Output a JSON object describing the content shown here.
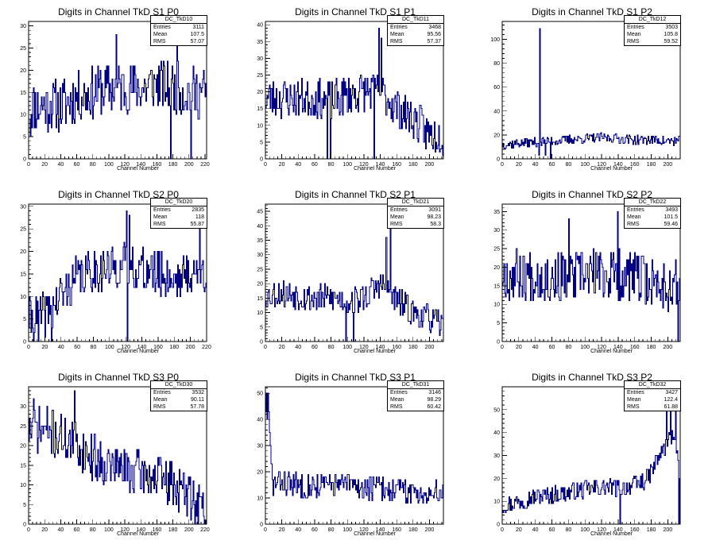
{
  "canvas": {
    "bg": "#ffffff",
    "line_color": "#000080"
  },
  "chart_data": [
    {
      "type": "histogram",
      "title": "Digits in Channel TkD S1 P0",
      "xlabel": "Channel Number",
      "ylim": [
        0,
        31
      ],
      "xlim": [
        0,
        222
      ],
      "nbins": 222,
      "yticks": [
        0,
        5,
        10,
        15,
        20,
        25,
        30
      ],
      "stats": {
        "name": "DC_TkD10",
        "entries": "3111",
        "mean": "107.5",
        "rms": "57.07"
      },
      "profile": [
        [
          0,
          12
        ],
        [
          20,
          12
        ],
        [
          40,
          12
        ],
        [
          60,
          14
        ],
        [
          80,
          15
        ],
        [
          100,
          16
        ],
        [
          120,
          16
        ],
        [
          140,
          16
        ],
        [
          160,
          17
        ],
        [
          180,
          16
        ],
        [
          200,
          15
        ],
        [
          221,
          15
        ]
      ],
      "spikes": [
        [
          109,
          28
        ],
        [
          185,
          28
        ],
        [
          177,
          0
        ],
        [
          202,
          0
        ],
        [
          2,
          5
        ]
      ],
      "amp": 6,
      "seed": 11
    },
    {
      "type": "histogram",
      "title": "Digits in Channel TkD S1 P1",
      "xlabel": "Channel Number",
      "ylim": [
        0,
        41
      ],
      "xlim": [
        0,
        217
      ],
      "nbins": 217,
      "yticks": [
        0,
        5,
        10,
        15,
        20,
        25,
        30,
        35,
        40
      ],
      "stats": {
        "name": "DC_TkD11",
        "entries": "3468",
        "mean": "95.56",
        "rms": "57.37"
      },
      "profile": [
        [
          0,
          18
        ],
        [
          20,
          18
        ],
        [
          40,
          18
        ],
        [
          60,
          18
        ],
        [
          80,
          17
        ],
        [
          100,
          19
        ],
        [
          120,
          20
        ],
        [
          140,
          20
        ],
        [
          160,
          15
        ],
        [
          180,
          12
        ],
        [
          200,
          7
        ],
        [
          216,
          8
        ]
      ],
      "spikes": [
        [
          138,
          39
        ],
        [
          141,
          36
        ],
        [
          75,
          0
        ],
        [
          79,
          0
        ],
        [
          132,
          0
        ],
        [
          216,
          1
        ]
      ],
      "amp": 6,
      "seed": 23
    },
    {
      "type": "histogram",
      "title": "Digits in Channel TkD S1 P2",
      "xlabel": "Channel Number",
      "ylim": [
        0,
        115
      ],
      "xlim": [
        0,
        215
      ],
      "nbins": 215,
      "yticks": [
        0,
        20,
        40,
        60,
        80,
        100
      ],
      "stats": {
        "name": "DC_TkD12",
        "entries": "3503",
        "mean": "105.8",
        "rms": "59.52"
      },
      "profile": [
        [
          0,
          12
        ],
        [
          20,
          13
        ],
        [
          40,
          14
        ],
        [
          60,
          15
        ],
        [
          80,
          16
        ],
        [
          100,
          17
        ],
        [
          120,
          18
        ],
        [
          140,
          17
        ],
        [
          160,
          16
        ],
        [
          180,
          16
        ],
        [
          200,
          15
        ],
        [
          214,
          15
        ]
      ],
      "spikes": [
        [
          45,
          109
        ],
        [
          44,
          3
        ],
        [
          52,
          3
        ],
        [
          58,
          0
        ]
      ],
      "amp": 4,
      "seed": 37
    },
    {
      "type": "histogram",
      "title": "Digits in Channel TkD S2 P0",
      "xlabel": "Channel Number",
      "ylim": [
        0,
        30.5
      ],
      "xlim": [
        0,
        220
      ],
      "nbins": 220,
      "yticks": [
        0,
        5,
        10,
        15,
        20,
        25,
        30
      ],
      "stats": {
        "name": "DC_TkD20",
        "entries": "2835",
        "mean": "118",
        "rms": "55.87"
      },
      "profile": [
        [
          0,
          5
        ],
        [
          20,
          6
        ],
        [
          40,
          10
        ],
        [
          60,
          14
        ],
        [
          80,
          16
        ],
        [
          100,
          16
        ],
        [
          120,
          17
        ],
        [
          140,
          16
        ],
        [
          160,
          15
        ],
        [
          180,
          14
        ],
        [
          200,
          15
        ],
        [
          219,
          15
        ]
      ],
      "spikes": [
        [
          121,
          29
        ],
        [
          124,
          28
        ],
        [
          211,
          26
        ],
        [
          122,
          0
        ],
        [
          12,
          0
        ],
        [
          28,
          0
        ]
      ],
      "amp": 5,
      "seed": 41
    },
    {
      "type": "histogram",
      "title": "Digits in Channel TkD S2 P1",
      "xlabel": "Channel Number",
      "ylim": [
        0,
        47.5
      ],
      "xlim": [
        0,
        217
      ],
      "nbins": 217,
      "yticks": [
        0,
        5,
        10,
        15,
        20,
        25,
        30,
        35,
        40,
        45
      ],
      "stats": {
        "name": "DC_TkD21",
        "entries": "3091",
        "mean": "98.23",
        "rms": "58.3"
      },
      "profile": [
        [
          0,
          16
        ],
        [
          20,
          17
        ],
        [
          40,
          16
        ],
        [
          60,
          15
        ],
        [
          80,
          15
        ],
        [
          100,
          14
        ],
        [
          120,
          15
        ],
        [
          140,
          20
        ],
        [
          160,
          14
        ],
        [
          180,
          10
        ],
        [
          200,
          8
        ],
        [
          216,
          5
        ]
      ],
      "spikes": [
        [
          152,
          45
        ],
        [
          147,
          36
        ],
        [
          98,
          0
        ],
        [
          107,
          0
        ]
      ],
      "amp": 5,
      "seed": 53
    },
    {
      "type": "histogram",
      "title": "Digits in Channel TkD S2 P2",
      "xlabel": "Channel Number",
      "ylim": [
        0,
        37
      ],
      "xlim": [
        0,
        215
      ],
      "nbins": 215,
      "yticks": [
        0,
        5,
        10,
        15,
        20,
        25,
        30,
        35
      ],
      "stats": {
        "name": "DC_TkD22",
        "entries": "3493",
        "mean": "101.5",
        "rms": "59.46"
      },
      "profile": [
        [
          0,
          18
        ],
        [
          20,
          18
        ],
        [
          40,
          18
        ],
        [
          60,
          17
        ],
        [
          80,
          17
        ],
        [
          100,
          18
        ],
        [
          120,
          18
        ],
        [
          140,
          18
        ],
        [
          160,
          17
        ],
        [
          180,
          16
        ],
        [
          200,
          15
        ],
        [
          214,
          15
        ]
      ],
      "spikes": [
        [
          139,
          35
        ],
        [
          80,
          33
        ],
        [
          212,
          0
        ],
        [
          6,
          13
        ]
      ],
      "amp": 7,
      "seed": 67
    },
    {
      "type": "histogram",
      "title": "Digits in Channel TkD S3 P0",
      "xlabel": "Channel Number",
      "ylim": [
        0,
        35
      ],
      "xlim": [
        0,
        222
      ],
      "nbins": 222,
      "yticks": [
        0,
        5,
        10,
        15,
        20,
        25,
        30
      ],
      "stats": {
        "name": "DC_TkD30",
        "entries": "3532",
        "mean": "90.11",
        "rms": "57.78"
      },
      "profile": [
        [
          0,
          24
        ],
        [
          20,
          24
        ],
        [
          40,
          22
        ],
        [
          60,
          20
        ],
        [
          80,
          17
        ],
        [
          100,
          15
        ],
        [
          120,
          14
        ],
        [
          140,
          13
        ],
        [
          160,
          12
        ],
        [
          180,
          10
        ],
        [
          200,
          7
        ],
        [
          221,
          4
        ]
      ],
      "spikes": [
        [
          6,
          32
        ],
        [
          57,
          34
        ],
        [
          221,
          0
        ]
      ],
      "amp": 6,
      "seed": 71
    },
    {
      "type": "histogram",
      "title": "Digits in Channel TkD S3 P1",
      "xlabel": "Channel Number",
      "ylim": [
        0,
        52.5
      ],
      "xlim": [
        0,
        217
      ],
      "nbins": 217,
      "yticks": [
        0,
        10,
        20,
        30,
        40,
        50
      ],
      "stats": {
        "name": "DC_TkD31",
        "entries": "3146",
        "mean": "98.29",
        "rms": "60.42"
      },
      "profile": [
        [
          0,
          45
        ],
        [
          4,
          40
        ],
        [
          8,
          15
        ],
        [
          20,
          16
        ],
        [
          40,
          15
        ],
        [
          60,
          15
        ],
        [
          80,
          15
        ],
        [
          100,
          15
        ],
        [
          120,
          14
        ],
        [
          140,
          14
        ],
        [
          160,
          13
        ],
        [
          180,
          12
        ],
        [
          200,
          12
        ],
        [
          216,
          12
        ]
      ],
      "spikes": [
        [
          1,
          50
        ],
        [
          3,
          50
        ],
        [
          2,
          40
        ]
      ],
      "amp": 5,
      "seed": 83
    },
    {
      "type": "histogram",
      "title": "Digits in Channel TkD S3 P2",
      "xlabel": "Channel Number",
      "ylim": [
        0,
        60
      ],
      "xlim": [
        0,
        215
      ],
      "nbins": 215,
      "yticks": [
        0,
        10,
        20,
        30,
        40,
        50
      ],
      "stats": {
        "name": "DC_TkD32",
        "entries": "3427",
        "mean": "122.4",
        "rms": "61.88"
      },
      "profile": [
        [
          0,
          8
        ],
        [
          20,
          10
        ],
        [
          40,
          12
        ],
        [
          60,
          13
        ],
        [
          80,
          14
        ],
        [
          100,
          15
        ],
        [
          120,
          16
        ],
        [
          140,
          16
        ],
        [
          160,
          17
        ],
        [
          175,
          20
        ],
        [
          190,
          30
        ],
        [
          200,
          36
        ],
        [
          208,
          40
        ],
        [
          214,
          20
        ]
      ],
      "spikes": [
        [
          203,
          58
        ],
        [
          198,
          52
        ],
        [
          209,
          50
        ],
        [
          142,
          0
        ],
        [
          213,
          0
        ]
      ],
      "amp": 4,
      "seed": 97
    }
  ]
}
